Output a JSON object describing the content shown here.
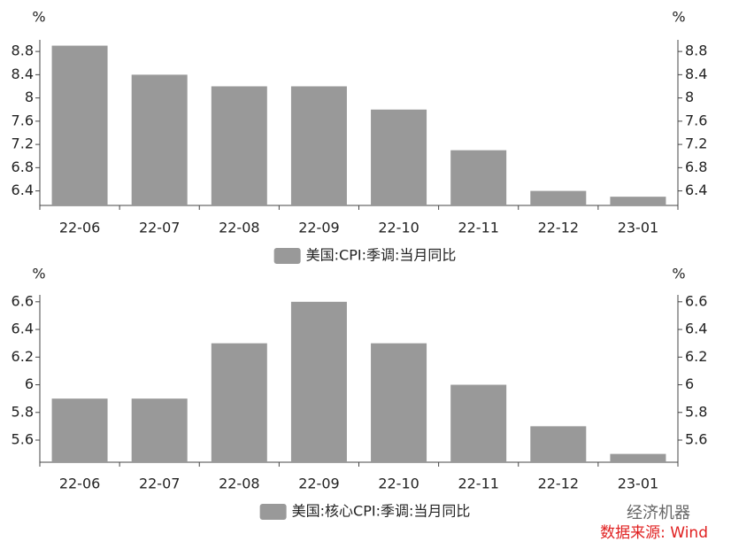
{
  "chart_data": [
    {
      "type": "bar",
      "ylabel": "%",
      "categories": [
        "22-06",
        "22-07",
        "22-08",
        "22-09",
        "22-10",
        "22-11",
        "22-12",
        "23-01"
      ],
      "series": [
        {
          "name": "美国:CPI:季调:当月同比",
          "color": "#999999",
          "values": [
            8.9,
            8.4,
            8.2,
            8.2,
            7.8,
            7.1,
            6.4,
            6.3
          ]
        }
      ],
      "ylim": [
        6.15,
        9.0
      ],
      "yticks": [
        6.4,
        6.8,
        7.2,
        7.6,
        8,
        8.4,
        8.8
      ]
    },
    {
      "type": "bar",
      "ylabel": "%",
      "categories": [
        "22-06",
        "22-07",
        "22-08",
        "22-09",
        "22-10",
        "22-11",
        "22-12",
        "23-01"
      ],
      "series": [
        {
          "name": "美国:核心CPI:季调:当月同比",
          "color": "#999999",
          "values": [
            5.9,
            5.9,
            6.3,
            6.6,
            6.3,
            6.0,
            5.7,
            5.5
          ]
        }
      ],
      "ylim": [
        5.44,
        6.65
      ],
      "yticks": [
        5.6,
        5.8,
        6,
        6.2,
        6.4,
        6.6
      ]
    }
  ],
  "watermark": "经济机器",
  "source": "数据来源: Wind"
}
